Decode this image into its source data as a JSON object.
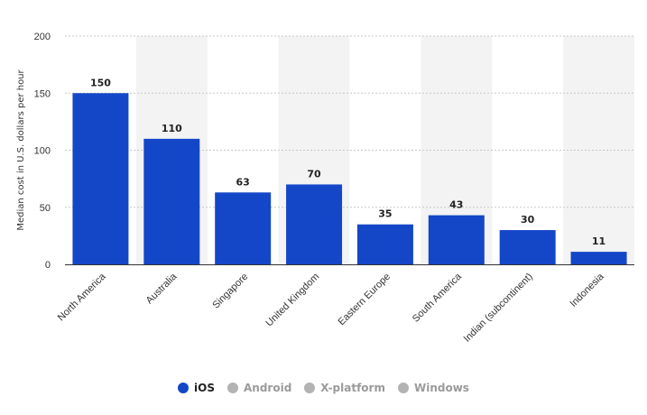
{
  "chart_data": {
    "type": "bar",
    "categories": [
      "North America",
      "Australia",
      "Singapore",
      "United Kingdom",
      "Eastern Europe",
      "South America",
      "Indian (subcontinent)",
      "Indonesia"
    ],
    "series": [
      {
        "name": "iOS",
        "color": "#1447c8",
        "values": [
          150,
          110,
          63,
          70,
          35,
          43,
          30,
          11
        ]
      }
    ],
    "ylabel": "Median cost in U.S. dollars per hour",
    "xlabel": "",
    "ylim": [
      0,
      200
    ],
    "yticks": [
      0,
      50,
      100,
      150,
      200
    ],
    "grid": true,
    "legend_position": "bottom"
  },
  "legend": {
    "items": [
      {
        "label": "iOS",
        "color": "#1447c8",
        "active": true,
        "icon": "filled-circle-icon"
      },
      {
        "label": "Android",
        "color": "#b3b3b3",
        "active": false,
        "icon": "filled-circle-icon"
      },
      {
        "label": "X-platform",
        "color": "#b3b3b3",
        "active": false,
        "icon": "filled-circle-icon"
      },
      {
        "label": "Windows",
        "color": "#b3b3b3",
        "active": false,
        "icon": "filled-circle-icon"
      }
    ]
  },
  "colors": {
    "band": "#f3f3f3",
    "grid": "#c8c8c8",
    "axis": "#333333",
    "legend_active_text": "#222222",
    "legend_inactive_text": "#9a9a9a"
  }
}
